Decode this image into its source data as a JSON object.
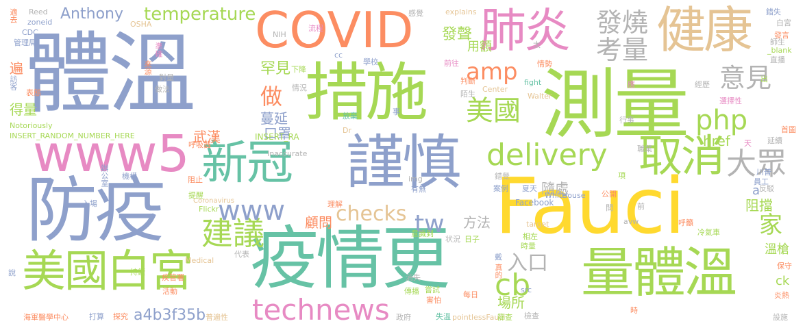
{
  "words": [
    {
      "text": "體溫",
      "color": "#8ea0cb"
    },
    {
      "text": "措施",
      "color": "#a6d854"
    },
    {
      "text": "測量",
      "color": "#a6d854"
    },
    {
      "text": "防疫",
      "color": "#8ea0cb"
    },
    {
      "text": "Fauci",
      "color": "#ffd92f"
    },
    {
      "text": "疫情更",
      "color": "#66c2a5"
    },
    {
      "text": "謹慎",
      "color": "#8ea0cb"
    },
    {
      "text": "量體溫",
      "color": "#a6d854"
    },
    {
      "text": "美國白宮",
      "color": "#a6d854"
    },
    {
      "text": "COVID",
      "color": "#fc8d62"
    },
    {
      "text": "www5",
      "color": "#e78ac3"
    },
    {
      "text": "新冠",
      "color": "#66c2a5"
    },
    {
      "text": "健康",
      "color": "#e5c494"
    },
    {
      "text": "肺炎",
      "color": "#e78ac3"
    },
    {
      "text": "取消",
      "color": "#a6d854"
    },
    {
      "text": "technews",
      "color": "#e78ac3"
    },
    {
      "text": "大眾",
      "color": "#b3b3b3"
    },
    {
      "text": "發燒",
      "color": "#b3b3b3"
    },
    {
      "text": "考量",
      "color": "#b3b3b3"
    },
    {
      "text": "意見",
      "color": "#b3b3b3"
    },
    {
      "text": "delivery",
      "color": "#a6d854"
    },
    {
      "text": "建議",
      "color": "#a6d854"
    },
    {
      "text": "www",
      "color": "#8ea0cb"
    },
    {
      "text": "amp",
      "color": "#fc8d62"
    },
    {
      "text": "php",
      "color": "#a6d854"
    },
    {
      "text": "美國",
      "color": "#a6d854"
    },
    {
      "text": "tw",
      "color": "#8ea0cb"
    },
    {
      "text": "cb",
      "color": "#a6d854"
    },
    {
      "text": "入口",
      "color": "#b3b3b3"
    },
    {
      "text": "家",
      "color": "#a6d854"
    },
    {
      "text": "做",
      "color": "#fc8d62"
    },
    {
      "text": "checks",
      "color": "#e5c494"
    },
    {
      "text": "temperature",
      "color": "#a6d854"
    },
    {
      "text": "Anthony",
      "color": "#8ea0cb"
    },
    {
      "text": "發聲",
      "color": "#a6d854"
    },
    {
      "text": "用額",
      "color": "#a6d854"
    },
    {
      "text": "罕見",
      "color": "#a6d854"
    },
    {
      "text": "蔓延",
      "color": "#8ea0cb"
    },
    {
      "text": "口罩",
      "color": "#8ea0cb"
    },
    {
      "text": "武漢",
      "color": "#fc8d62"
    },
    {
      "text": "顧問",
      "color": "#fc8d62"
    },
    {
      "text": "方法",
      "color": "#b3b3b3"
    },
    {
      "text": "a4b3f35b",
      "color": "#8ea0cb"
    },
    {
      "text": "場所",
      "color": "#a6d854"
    },
    {
      "text": "隨處",
      "color": "#b3b3b3"
    },
    {
      "text": "阻擋",
      "color": "#a6d854"
    },
    {
      "text": "href",
      "color": "#a6d854"
    },
    {
      "text": "溫槍",
      "color": "#a6d854"
    },
    {
      "text": "得量",
      "color": "#a6d854"
    },
    {
      "text": "ck",
      "color": "#a6d854"
    },
    {
      "text": "遍",
      "color": "#fc8d62"
    },
    {
      "text": "INSERT_RANDOM_NUMBER_HERE",
      "color": "#a6d854"
    },
    {
      "text": "INSERT_RA",
      "color": "#a6d854"
    },
    {
      "text": "Notoriously",
      "color": "#a6d854"
    },
    {
      "text": "Coronavirus",
      "color": "#e5c494"
    },
    {
      "text": "Facebook",
      "color": "#8ea0cb"
    },
    {
      "text": "Center",
      "color": "#e5c494"
    },
    {
      "text": "Walter",
      "color": "#e5c494"
    },
    {
      "text": "fight",
      "color": "#66c2a5"
    },
    {
      "text": "explains",
      "color": "#e5c494"
    },
    {
      "text": "Reed",
      "color": "#b3b3b3"
    },
    {
      "text": "zoneid",
      "color": "#8ea0cb"
    },
    {
      "text": "OSHA",
      "color": "#e5c494"
    },
    {
      "text": "CDC",
      "color": "#8ea0cb"
    },
    {
      "text": "NIH",
      "color": "#b3b3b3"
    },
    {
      "text": "Medical",
      "color": "#e5c494"
    },
    {
      "text": "House",
      "color": "#8ea0cb"
    },
    {
      "text": "White",
      "color": "#8ea0cb"
    },
    {
      "text": "Flickr",
      "color": "#a6d854"
    },
    {
      "text": "src",
      "color": "#8ea0cb"
    },
    {
      "text": "Dr",
      "color": "#e5c494"
    },
    {
      "text": "img",
      "color": "#b3b3b3"
    },
    {
      "text": "target",
      "color": "#e5c494"
    },
    {
      "text": "avw",
      "color": "#b3b3b3"
    },
    {
      "text": "Inaccurate",
      "color": "#b3b3b3"
    },
    {
      "text": "pointlessFauci",
      "color": "#e5c494"
    },
    {
      "text": "_blank",
      "color": "#a6d854"
    },
    {
      "text": "cc",
      "color": "#8ea0cb"
    },
    {
      "text": "n",
      "color": "#a6d854"
    },
    {
      "text": "a",
      "color": "#8ea0cb"
    },
    {
      "text": "適去",
      "color": "#fc8d62"
    },
    {
      "text": "管理局",
      "color": "#8ea0cb"
    },
    {
      "text": "訪客",
      "color": "#8ea0cb"
    },
    {
      "text": "表態",
      "color": "#fc8d62"
    },
    {
      "text": "呼吸器",
      "color": "#fc8d62"
    },
    {
      "text": "辦公室",
      "color": "#8ea0cb"
    },
    {
      "text": "機構",
      "color": "#8ea0cb"
    },
    {
      "text": "入場",
      "color": "#8ea0cb"
    },
    {
      "text": "提醒",
      "color": "#a6d854"
    },
    {
      "text": "阻止",
      "color": "#fc8d62"
    },
    {
      "text": "持續",
      "color": "#a6d854"
    },
    {
      "text": "疾管署",
      "color": "#fc8d62"
    },
    {
      "text": "活動",
      "color": "#fc8d62"
    },
    {
      "text": "海軍醫學中心",
      "color": "#fc8d62"
    },
    {
      "text": "打算",
      "color": "#8ea0cb"
    },
    {
      "text": "探究",
      "color": "#fc8d62"
    },
    {
      "text": "普遍性",
      "color": "#e5c494"
    },
    {
      "text": "代表",
      "color": "#b3b3b3"
    },
    {
      "text": "對量",
      "color": "#b3b3b3"
    },
    {
      "text": "做法",
      "color": "#b3b3b3"
    },
    {
      "text": "來源",
      "color": "#fc8d62"
    },
    {
      "text": "準確",
      "color": "#e78ac3"
    },
    {
      "text": "流程",
      "color": "#e78ac3"
    },
    {
      "text": "感覺",
      "color": "#b3b3b3"
    },
    {
      "text": "學校",
      "color": "#8ea0cb"
    },
    {
      "text": "下降",
      "color": "#a6d854"
    },
    {
      "text": "情況",
      "color": "#b3b3b3"
    },
    {
      "text": "前往",
      "color": "#e78ac3"
    },
    {
      "text": "判斷",
      "color": "#fc8d62"
    },
    {
      "text": "陌生",
      "color": "#b3b3b3"
    },
    {
      "text": "事",
      "color": "#8ea0cb"
    },
    {
      "text": "有無",
      "color": "#8ea0cb"
    },
    {
      "text": "理解",
      "color": "#fc8d62"
    },
    {
      "text": "放棄",
      "color": "#66c2a5"
    },
    {
      "text": "意識到",
      "color": "#a6d854"
    },
    {
      "text": "状況",
      "color": "#b3b3b3"
    },
    {
      "text": "日子",
      "color": "#a6d854"
    },
    {
      "text": "相左",
      "color": "#a6d854"
    },
    {
      "text": "時量",
      "color": "#a6d854"
    },
    {
      "text": "戴",
      "color": "#8ea0cb"
    },
    {
      "text": "真的",
      "color": "#fc8d62"
    },
    {
      "text": "消失",
      "color": "#b3b3b3"
    },
    {
      "text": "傳播",
      "color": "#a6d854"
    },
    {
      "text": "嘗試",
      "color": "#a6d854"
    },
    {
      "text": "害怕",
      "color": "#fc8d62"
    },
    {
      "text": "每日",
      "color": "#fc8d62"
    },
    {
      "text": "政府",
      "color": "#b3b3b3"
    },
    {
      "text": "失溫",
      "color": "#66c2a5"
    },
    {
      "text": "篩查",
      "color": "#a6d854"
    },
    {
      "text": "檢查",
      "color": "#b3b3b3"
    },
    {
      "text": "案例",
      "color": "#8ea0cb"
    },
    {
      "text": "夏天",
      "color": "#8ea0cb"
    },
    {
      "text": "錯覺",
      "color": "#b3b3b3"
    },
    {
      "text": "情勢",
      "color": "#fc8d62"
    },
    {
      "text": "太",
      "color": "#b3b3b3"
    },
    {
      "text": "應",
      "color": "#e78ac3"
    },
    {
      "text": "行事",
      "color": "#b3b3b3"
    },
    {
      "text": "經歷",
      "color": "#b3b3b3"
    },
    {
      "text": "選擇性",
      "color": "#e78ac3"
    },
    {
      "text": "職業",
      "color": "#b3b3b3"
    },
    {
      "text": "公開",
      "color": "#fc8d62"
    },
    {
      "text": "項",
      "color": "#a6d854"
    },
    {
      "text": "間",
      "color": "#b3b3b3"
    },
    {
      "text": "呼籲",
      "color": "#fc8d62"
    },
    {
      "text": "冷氣車",
      "color": "#a6d854"
    },
    {
      "text": "前",
      "color": "#b3b3b3"
    },
    {
      "text": "時",
      "color": "#fc8d62"
    },
    {
      "text": "天",
      "color": "#e78ac3"
    },
    {
      "text": "川普",
      "color": "#8ea0cb"
    },
    {
      "text": "員工",
      "color": "#8ea0cb"
    },
    {
      "text": "延續",
      "color": "#b3b3b3"
    },
    {
      "text": "反駁",
      "color": "#b3b3b3"
    },
    {
      "text": "保守",
      "color": "#fc8d62"
    },
    {
      "text": "炎熱",
      "color": "#fc8d62"
    },
    {
      "text": "設施",
      "color": "#b3b3b3"
    },
    {
      "text": "發言",
      "color": "#fc8d62"
    },
    {
      "text": "師生",
      "color": "#b3b3b3"
    },
    {
      "text": "首圖",
      "color": "#fc8d62"
    },
    {
      "text": "錯失",
      "color": "#8ea0cb"
    },
    {
      "text": "白宮",
      "color": "#b3b3b3"
    },
    {
      "text": "直播",
      "color": "#b3b3b3"
    },
    {
      "text": "出",
      "color": "#a6d854"
    },
    {
      "text": "說",
      "color": "#8ea0cb"
    }
  ]
}
